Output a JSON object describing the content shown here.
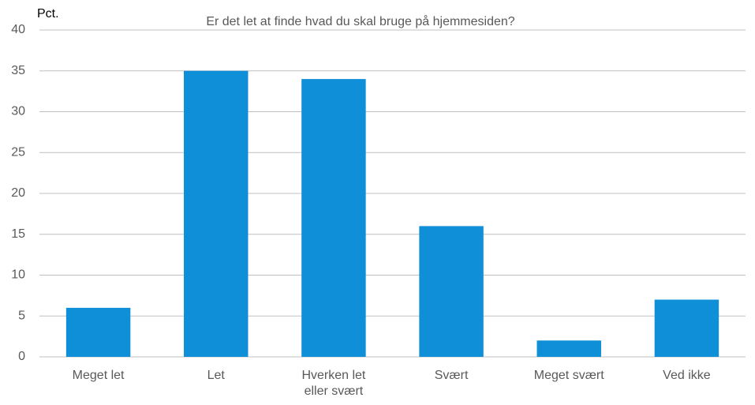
{
  "chart_data": {
    "type": "bar",
    "title": "Er det let at finde hvad du skal bruge på hjemmesiden?",
    "y_label": "Pct.",
    "categories": [
      "Meget let",
      "Let",
      "Hverken let eller svært",
      "Svært",
      "Meget svært",
      "Ved ikke"
    ],
    "values": [
      6,
      35,
      34,
      16,
      2,
      7
    ],
    "color": "#0e8fd7",
    "ylim": [
      0,
      40
    ],
    "yticks": [
      0,
      5,
      10,
      15,
      20,
      25,
      30,
      35,
      40
    ],
    "grid": true
  }
}
